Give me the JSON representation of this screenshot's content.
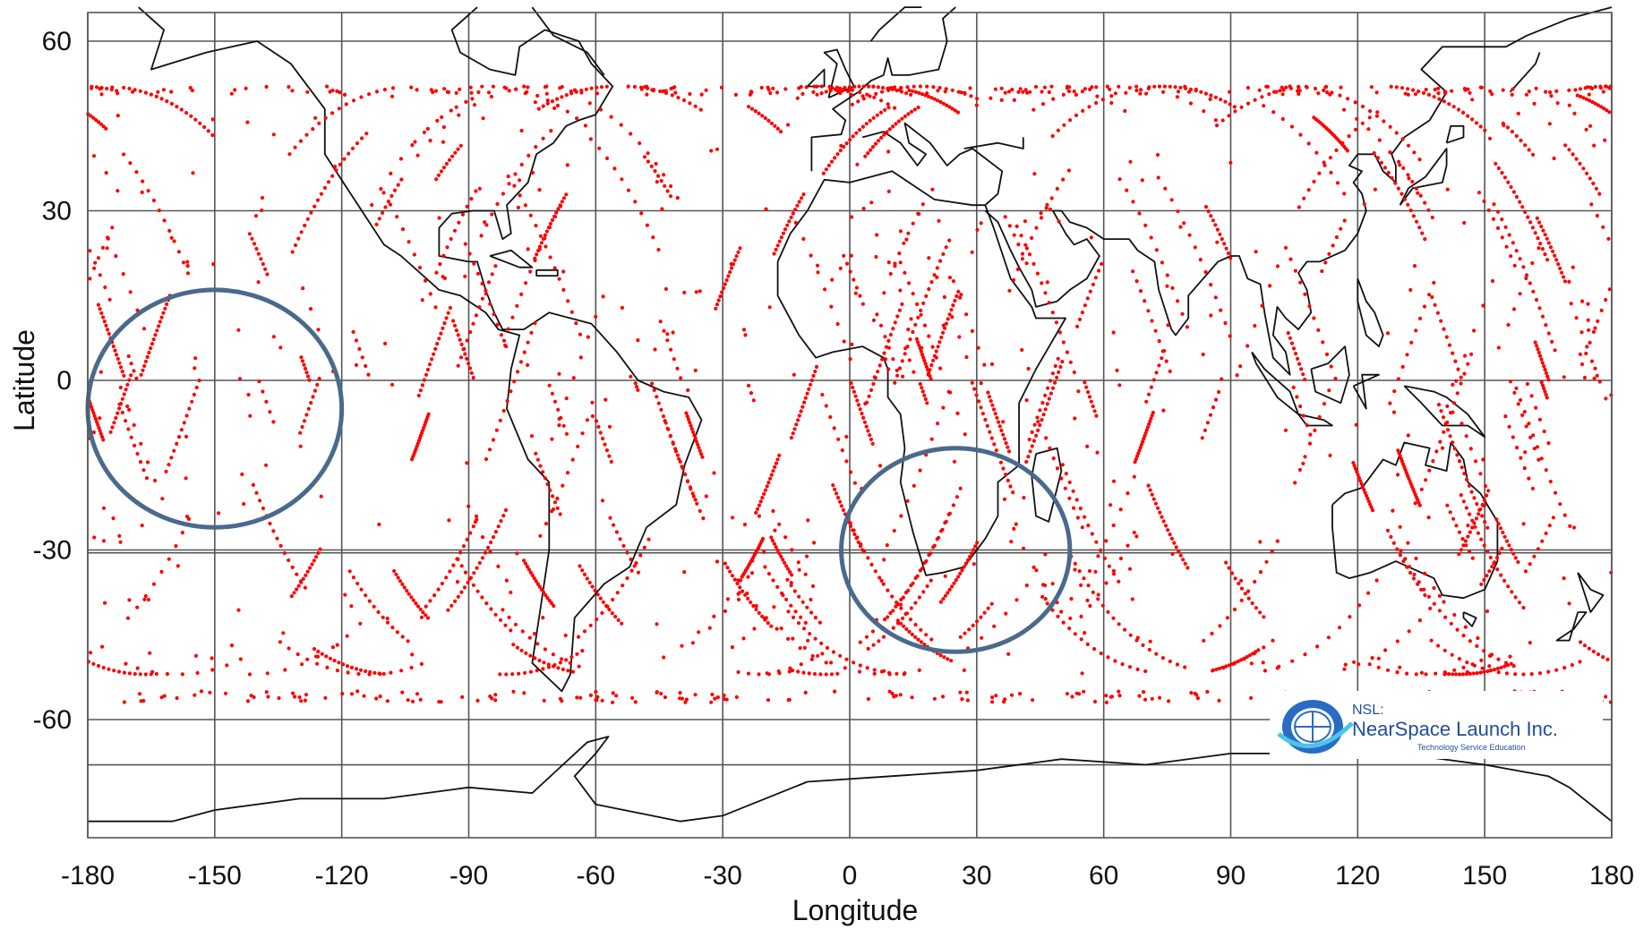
{
  "chart_data": {
    "type": "scatter",
    "xlabel": "Longitude",
    "ylabel": "Latitude",
    "xlim": [
      -180,
      180
    ],
    "ylim": [
      -80,
      65
    ],
    "x_ticks": [
      -180,
      -150,
      -120,
      -90,
      -60,
      -30,
      0,
      30,
      60,
      90,
      120,
      150,
      180
    ],
    "y_ticks": [
      60,
      30,
      0,
      -30,
      -60
    ],
    "x_tick_labels": [
      "-180",
      "-150",
      "-120",
      "-90",
      "-60",
      "-30",
      "0",
      "30",
      "60",
      "90",
      "120",
      "150",
      "180"
    ],
    "y_tick_labels": [
      "60",
      "30",
      "0",
      "-30",
      "-60"
    ],
    "extra_gridlines_lat": [
      -30.5,
      -68
    ],
    "grid": true,
    "point_color": "#ff0000",
    "lat_band": [
      -52,
      52
    ],
    "highlight_circles": [
      {
        "center_lon": -150,
        "center_lat": -5,
        "radius_lon": 30,
        "radius_lat": 21
      },
      {
        "center_lon": 25,
        "center_lat": -30,
        "radius_lon": 27,
        "radius_lat": 18
      }
    ]
  },
  "logo": {
    "line1": "NSL:",
    "line2": "NearSpace Launch Inc.",
    "line3": "Technology Service Education"
  }
}
